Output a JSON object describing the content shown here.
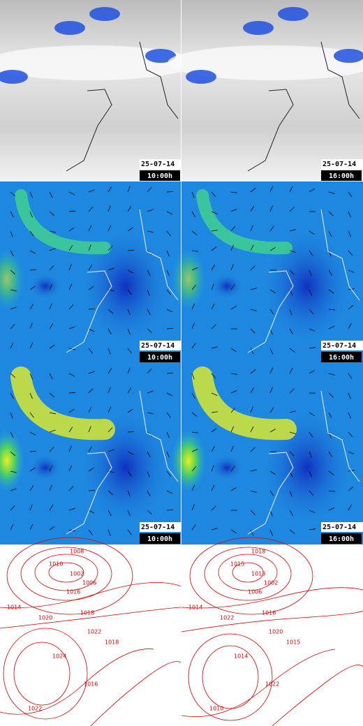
{
  "panels": [
    {
      "date": "25-07-14",
      "time": "10:00h"
    },
    {
      "date": "25-07-14",
      "time": "16:00h"
    },
    {
      "date": "25-07-14",
      "time": "10:00h"
    },
    {
      "date": "25-07-14",
      "time": "16:00h"
    },
    {
      "date": "25-07-14",
      "time": "10:00h"
    },
    {
      "date": "25-07-14",
      "time": "16:00h"
    }
  ],
  "isobars": {
    "left": [
      "1008",
      "1010",
      "1002",
      "1006",
      "1016",
      "1014",
      "1018",
      "1020",
      "1022",
      "1024",
      "1018",
      "1016",
      "1022"
    ],
    "right": [
      "1018",
      "1015",
      "1013",
      "1002",
      "1006",
      "1014",
      "1016",
      "1022",
      "1020",
      "1014",
      "1015",
      "1022",
      "1010"
    ]
  }
}
